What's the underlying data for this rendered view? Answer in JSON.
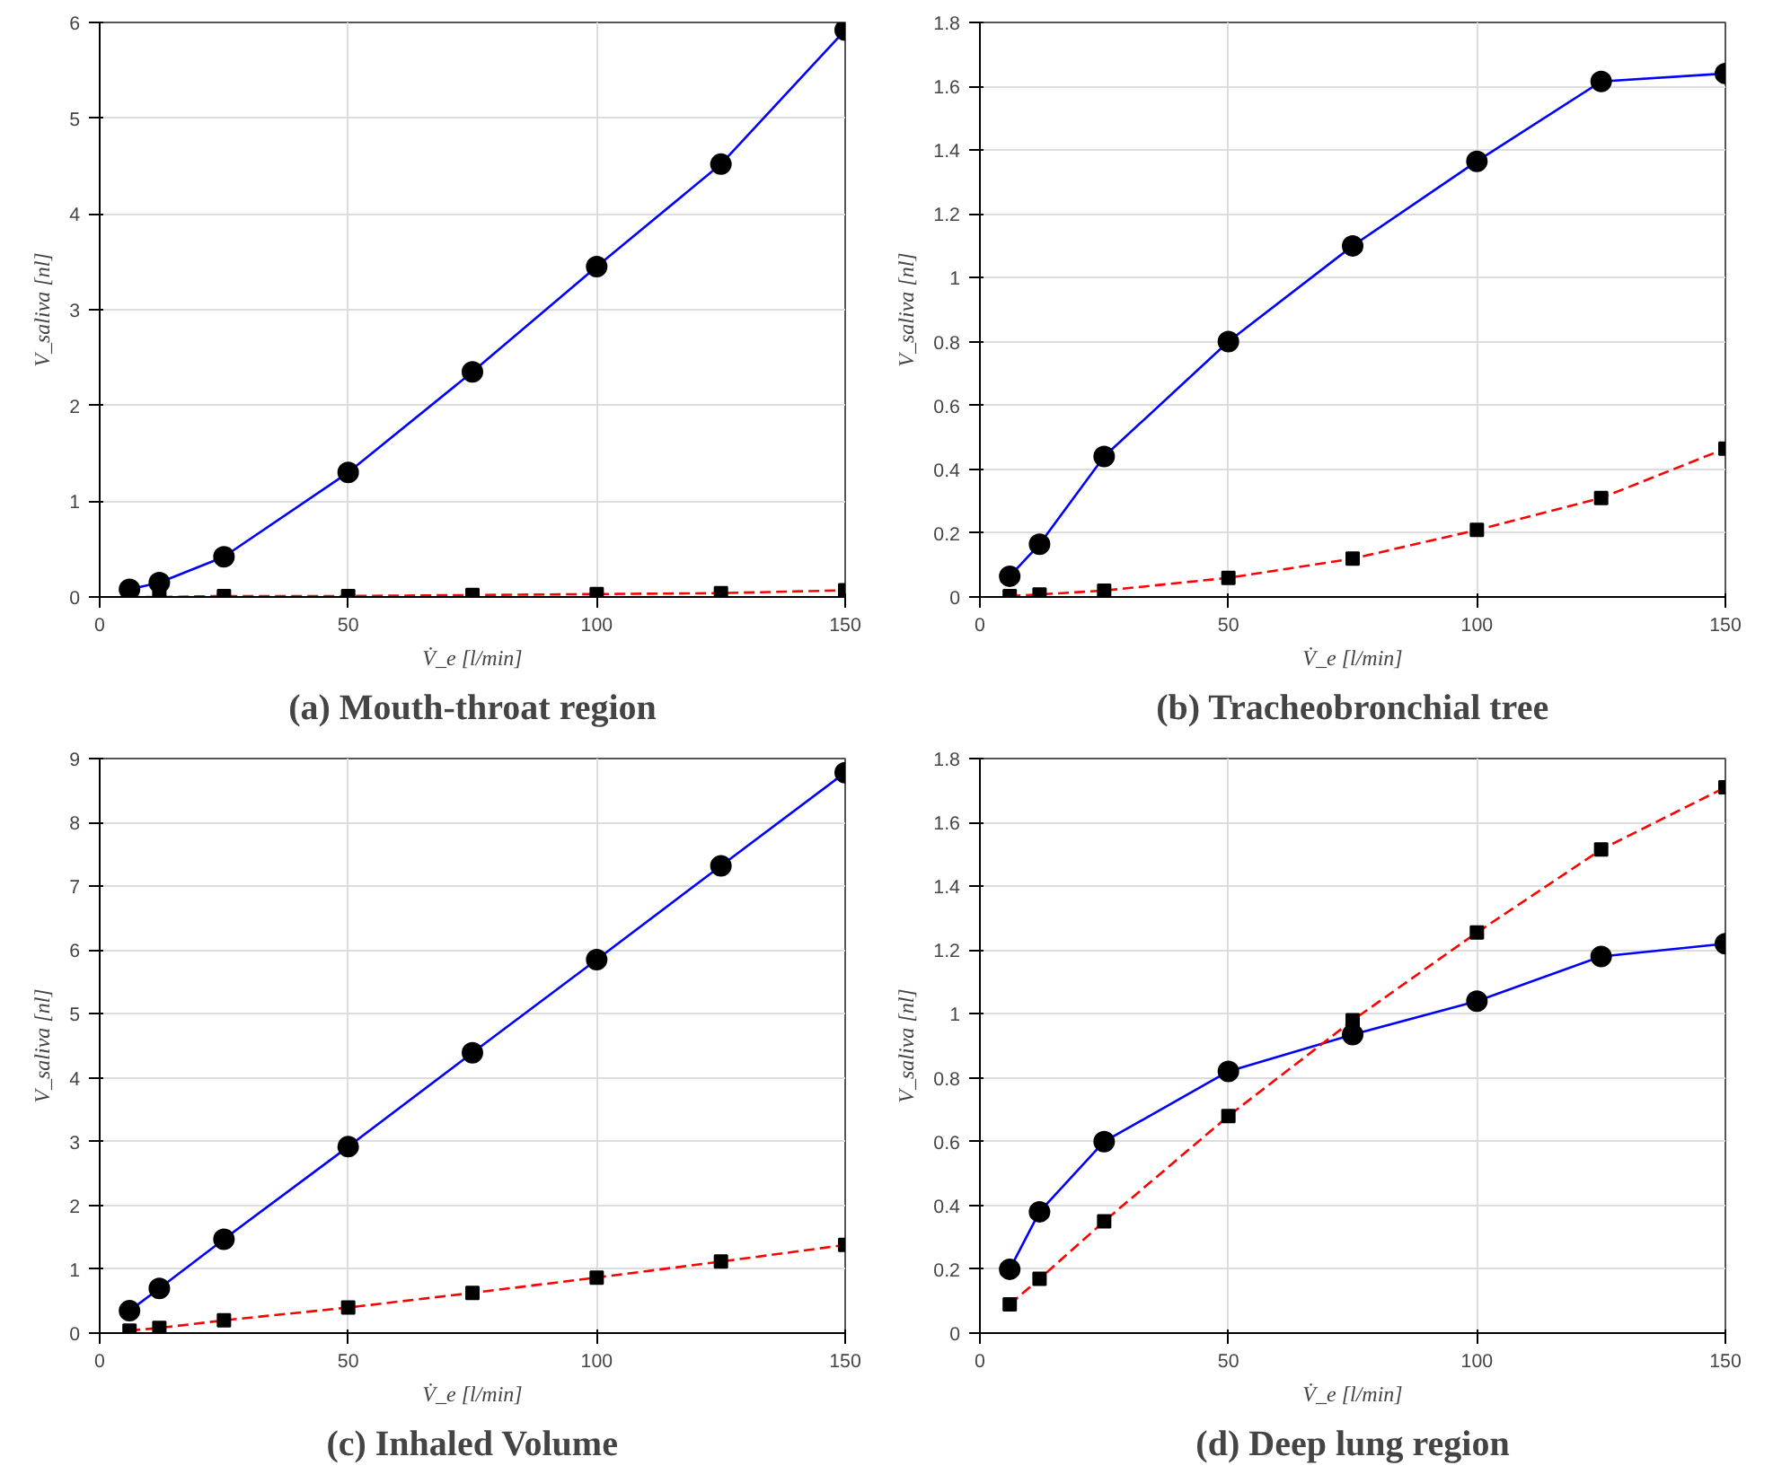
{
  "chart_data": [
    {
      "type": "line",
      "title": "(a) Mouth-throat region",
      "xlabel": "V̇_e [l/min]",
      "ylabel": "V_saliva [nl]",
      "x": [
        6,
        12,
        25,
        50,
        75,
        100,
        125,
        150
      ],
      "xlim": [
        0,
        150
      ],
      "xticks": [
        0,
        50,
        100,
        150
      ],
      "ylim": [
        0,
        6
      ],
      "yticks": [
        0,
        1,
        2,
        3,
        4,
        5,
        6
      ],
      "grid": true,
      "series": [
        {
          "color": "#0000ff",
          "marker": "circle",
          "line_style": "solid",
          "values": [
            0.08,
            0.15,
            0.42,
            1.3,
            2.35,
            3.45,
            4.52,
            5.92
          ]
        },
        {
          "color": "#ff0000",
          "marker": "square",
          "line_style": "dashed",
          "values": [
            0,
            0,
            0.01,
            0.01,
            0.02,
            0.03,
            0.04,
            0.07
          ]
        }
      ]
    },
    {
      "type": "line",
      "title": "(b) Tracheobronchial tree",
      "xlabel": "V̇_e [l/min]",
      "ylabel": "V_saliva [nl]",
      "x": [
        6,
        12,
        25,
        50,
        75,
        100,
        125,
        150
      ],
      "xlim": [
        0,
        150
      ],
      "xticks": [
        0,
        50,
        100,
        150
      ],
      "ylim": [
        0,
        1.8
      ],
      "yticks": [
        0,
        0.2,
        0.4,
        0.6,
        0.8,
        1,
        1.2,
        1.4,
        1.6,
        1.8
      ],
      "grid": true,
      "series": [
        {
          "color": "#0000ff",
          "marker": "circle",
          "line_style": "solid",
          "values": [
            0.065,
            0.165,
            0.44,
            0.8,
            1.1,
            1.365,
            1.615,
            1.64
          ]
        },
        {
          "color": "#ff0000",
          "marker": "square",
          "line_style": "dashed",
          "values": [
            0.003,
            0.008,
            0.02,
            0.06,
            0.12,
            0.21,
            0.31,
            0.465
          ]
        }
      ]
    },
    {
      "type": "line",
      "title": "(c) Inhaled Volume",
      "xlabel": "V̇_e [l/min]",
      "ylabel": "V_saliva [nl]",
      "x": [
        6,
        12,
        25,
        50,
        75,
        100,
        125,
        150
      ],
      "xlim": [
        0,
        150
      ],
      "xticks": [
        0,
        50,
        100,
        150
      ],
      "ylim": [
        0,
        9
      ],
      "yticks": [
        0,
        1,
        2,
        3,
        4,
        5,
        6,
        7,
        8,
        9
      ],
      "grid": true,
      "series": [
        {
          "color": "#0000ff",
          "marker": "circle",
          "line_style": "solid",
          "values": [
            0.35,
            0.7,
            1.47,
            2.92,
            4.39,
            5.85,
            7.32,
            8.78
          ]
        },
        {
          "color": "#ff0000",
          "marker": "square",
          "line_style": "dashed",
          "values": [
            0.04,
            0.08,
            0.2,
            0.4,
            0.63,
            0.87,
            1.12,
            1.38
          ]
        }
      ]
    },
    {
      "type": "line",
      "title": "(d) Deep lung region",
      "xlabel": "V̇_e [l/min]",
      "ylabel": "V_saliva [nl]",
      "x": [
        6,
        12,
        25,
        50,
        75,
        100,
        125,
        150
      ],
      "xlim": [
        0,
        150
      ],
      "xticks": [
        0,
        50,
        100,
        150
      ],
      "ylim": [
        0,
        1.8
      ],
      "yticks": [
        0,
        0.2,
        0.4,
        0.6,
        0.8,
        1,
        1.2,
        1.4,
        1.6,
        1.8
      ],
      "grid": true,
      "series": [
        {
          "color": "#0000ff",
          "marker": "circle",
          "line_style": "solid",
          "values": [
            0.2,
            0.38,
            0.6,
            0.82,
            0.935,
            1.04,
            1.18,
            1.22
          ]
        },
        {
          "color": "#ff0000",
          "marker": "square",
          "line_style": "dashed",
          "values": [
            0.09,
            0.17,
            0.35,
            0.68,
            0.98,
            1.255,
            1.515,
            1.71
          ]
        }
      ]
    }
  ]
}
